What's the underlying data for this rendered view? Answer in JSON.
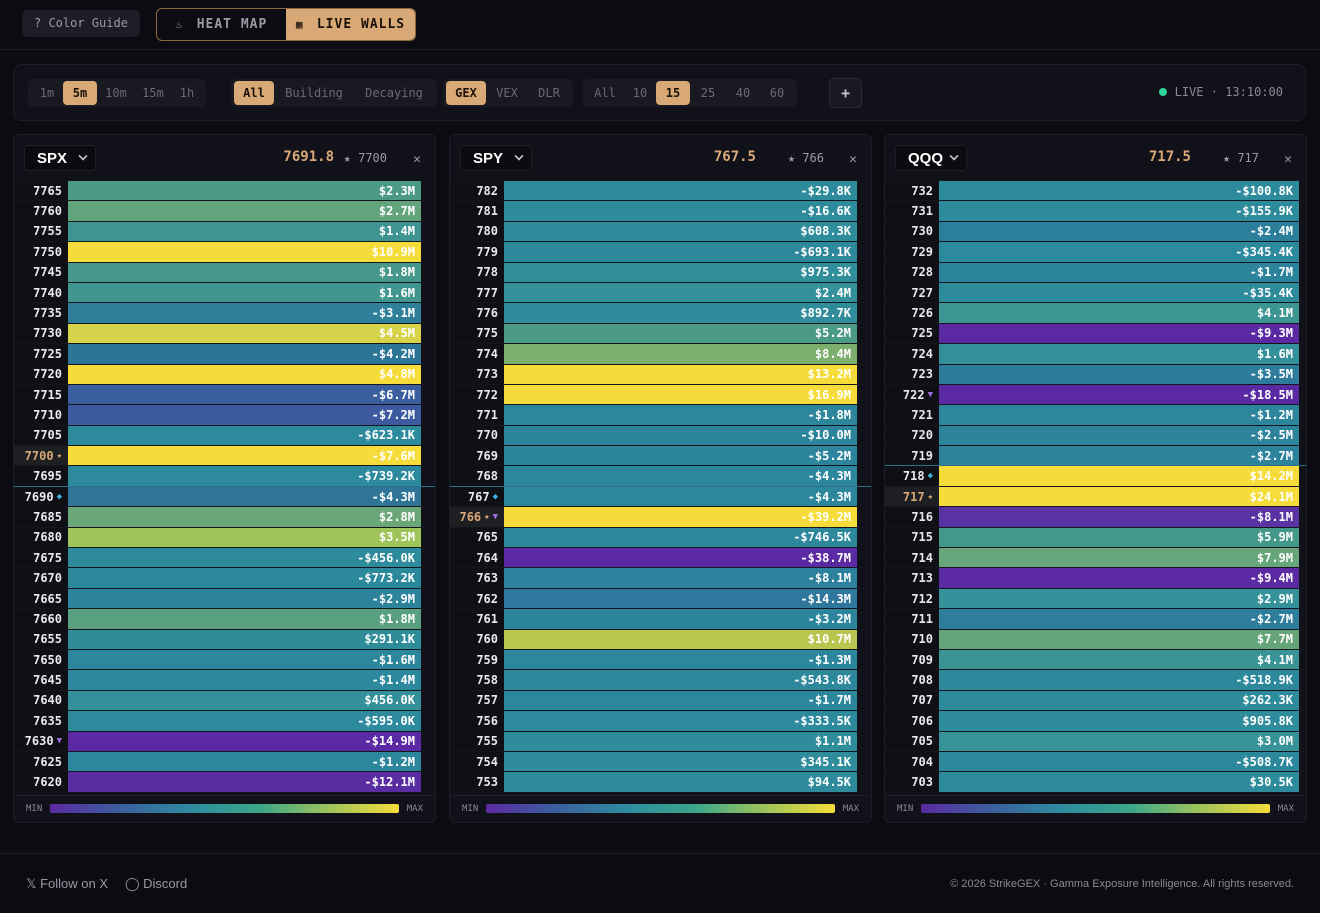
{
  "header": {
    "color_guide": "? Color Guide",
    "modes": [
      {
        "label": "HEAT MAP",
        "active": false
      },
      {
        "label": "LIVE WALLS",
        "active": true
      }
    ]
  },
  "controls": {
    "timeframes": [
      {
        "label": "1m",
        "active": false
      },
      {
        "label": "5m",
        "active": true
      },
      {
        "label": "10m",
        "active": false
      },
      {
        "label": "15m",
        "active": false
      },
      {
        "label": "1h",
        "active": false
      }
    ],
    "filters": [
      {
        "label": "All",
        "active": true
      },
      {
        "label": "Building",
        "active": false
      },
      {
        "label": "Decaying",
        "active": false
      }
    ],
    "metrics": [
      {
        "label": "GEX",
        "active": true
      },
      {
        "label": "VEX",
        "active": false
      },
      {
        "label": "DLR",
        "active": false
      }
    ],
    "strike_counts": [
      {
        "label": "All",
        "active": false
      },
      {
        "label": "10",
        "active": false
      },
      {
        "label": "15",
        "active": true
      },
      {
        "label": "25",
        "active": false
      },
      {
        "label": "40",
        "active": false
      },
      {
        "label": "60",
        "active": false
      }
    ],
    "add": "+",
    "live": "LIVE · 13:10:00"
  },
  "panels": [
    {
      "symbol": "SPX",
      "price": "7691.8",
      "star_strike": "★ 7700",
      "rows": [
        [
          "7765",
          "$2.3M",
          "#4b9a86",
          ""
        ],
        [
          "7760",
          "$2.7M",
          "#62a47c",
          ""
        ],
        [
          "7755",
          "$1.4M",
          "#3d9491",
          ""
        ],
        [
          "7750",
          "$10.9M",
          "#f5dc3a",
          ""
        ],
        [
          "7745",
          "$1.8M",
          "#45988b",
          ""
        ],
        [
          "7740",
          "$1.6M",
          "#419690",
          ""
        ],
        [
          "7735",
          "-$3.1M",
          "#2f7f9a",
          ""
        ],
        [
          "7730",
          "$4.5M",
          "#d6d24a",
          ""
        ],
        [
          "7725",
          "-$4.2M",
          "#2d7597",
          ""
        ],
        [
          "7720",
          "$4.8M",
          "#f5dc3a",
          ""
        ],
        [
          "7715",
          "-$6.7M",
          "#3b5f9e",
          ""
        ],
        [
          "7710",
          "-$7.2M",
          "#3d5aa0",
          ""
        ],
        [
          "7705",
          "-$623.1K",
          "#2c8a9c",
          ""
        ],
        [
          "7700",
          "-$7.6M",
          "#f5dc3a",
          "atm"
        ],
        [
          "7695",
          "-$739.2K",
          "#2c8a9c",
          ""
        ],
        [
          "7690",
          "-$4.3M",
          "#2e7597",
          "cur"
        ],
        [
          "7685",
          "$2.8M",
          "#6aa678",
          ""
        ],
        [
          "7680",
          "$3.5M",
          "#9fc45a",
          ""
        ],
        [
          "7675",
          "-$456.0K",
          "#2d8b9c",
          ""
        ],
        [
          "7670",
          "-$773.2K",
          "#2c899c",
          ""
        ],
        [
          "7665",
          "-$2.9M",
          "#2d839b",
          ""
        ],
        [
          "7660",
          "$1.8M",
          "#58a07f",
          ""
        ],
        [
          "7655",
          "$291.1K",
          "#2f8d9a",
          ""
        ],
        [
          "7650",
          "-$1.6M",
          "#2c879c",
          ""
        ],
        [
          "7645",
          "-$1.4M",
          "#2c889c",
          ""
        ],
        [
          "7640",
          "$456.0K",
          "#33909a",
          ""
        ],
        [
          "7635",
          "-$595.0K",
          "#2d8a9c",
          ""
        ],
        [
          "7630",
          "-$14.9M",
          "#5b2aa3",
          "min"
        ],
        [
          "7625",
          "-$1.2M",
          "#2d879c",
          ""
        ],
        [
          "7620",
          "-$12.1M",
          "#5a2ca2",
          ""
        ]
      ]
    },
    {
      "symbol": "SPY",
      "price": "767.5",
      "star_strike": "★ 766",
      "rows": [
        [
          "782",
          "-$29.8K",
          "#2e8b9c",
          ""
        ],
        [
          "781",
          "-$16.6K",
          "#2e8b9c",
          ""
        ],
        [
          "780",
          "$608.3K",
          "#2f8c9b",
          ""
        ],
        [
          "779",
          "-$693.1K",
          "#2d889c",
          ""
        ],
        [
          "778",
          "$975.3K",
          "#308d9a",
          ""
        ],
        [
          "777",
          "$2.4M",
          "#34909a",
          ""
        ],
        [
          "776",
          "$892.7K",
          "#308c9a",
          ""
        ],
        [
          "775",
          "$5.2M",
          "#4b9a86",
          ""
        ],
        [
          "774",
          "$8.4M",
          "#7cae6e",
          ""
        ],
        [
          "773",
          "$13.2M",
          "#f5dc3a",
          ""
        ],
        [
          "772",
          "$16.9M",
          "#f5dc3a",
          ""
        ],
        [
          "771",
          "-$1.8M",
          "#2d869c",
          ""
        ],
        [
          "770",
          "-$10.0M",
          "#2c849c",
          ""
        ],
        [
          "769",
          "-$5.2M",
          "#2c859c",
          ""
        ],
        [
          "768",
          "-$4.3M",
          "#2c869c",
          ""
        ],
        [
          "767",
          "-$4.3M",
          "#2c869c",
          "cur"
        ],
        [
          "766",
          "-$39.2M",
          "#f5dc3a",
          "atm"
        ],
        [
          "765",
          "-$746.5K",
          "#2d889c",
          ""
        ],
        [
          "764",
          "-$38.7M",
          "#5b2aa3",
          ""
        ],
        [
          "763",
          "-$8.1M",
          "#2c829c",
          ""
        ],
        [
          "762",
          "-$14.3M",
          "#2f779c",
          ""
        ],
        [
          "761",
          "-$3.2M",
          "#2c859c",
          ""
        ],
        [
          "760",
          "$10.7M",
          "#b8c54f",
          ""
        ],
        [
          "759",
          "-$1.3M",
          "#2d879c",
          ""
        ],
        [
          "758",
          "-$543.8K",
          "#2d889c",
          ""
        ],
        [
          "757",
          "-$1.7M",
          "#2d879c",
          ""
        ],
        [
          "756",
          "-$333.5K",
          "#2d899c",
          ""
        ],
        [
          "755",
          "$1.1M",
          "#2f8d9b",
          ""
        ],
        [
          "754",
          "$345.1K",
          "#2f8c9b",
          ""
        ],
        [
          "753",
          "$94.5K",
          "#2e8b9c",
          ""
        ]
      ]
    },
    {
      "symbol": "QQQ",
      "price": "717.5",
      "star_strike": "★ 717",
      "rows": [
        [
          "732",
          "-$100.8K",
          "#2e8b9c",
          ""
        ],
        [
          "731",
          "-$155.9K",
          "#2e8b9c",
          ""
        ],
        [
          "730",
          "-$2.4M",
          "#2c7f9b",
          ""
        ],
        [
          "729",
          "-$345.4K",
          "#2d899c",
          ""
        ],
        [
          "728",
          "-$1.7M",
          "#2c839c",
          ""
        ],
        [
          "727",
          "-$35.4K",
          "#2e8b9c",
          ""
        ],
        [
          "726",
          "$4.1M",
          "#3c9592",
          ""
        ],
        [
          "725",
          "-$9.3M",
          "#5b2aa3",
          ""
        ],
        [
          "724",
          "$1.6M",
          "#33909a",
          ""
        ],
        [
          "723",
          "-$3.5M",
          "#2e7b9b",
          ""
        ],
        [
          "722",
          "-$18.5M",
          "#5b2aa3",
          "min"
        ],
        [
          "721",
          "-$1.2M",
          "#2d869c",
          ""
        ],
        [
          "720",
          "-$2.5M",
          "#2d839c",
          ""
        ],
        [
          "719",
          "-$2.7M",
          "#2d829c",
          ""
        ],
        [
          "718",
          "$14.2M",
          "#f5dc3a",
          "cur"
        ],
        [
          "717",
          "$24.1M",
          "#f5dc3a",
          "atm"
        ],
        [
          "716",
          "-$8.1M",
          "#5a33a3",
          ""
        ],
        [
          "715",
          "$5.9M",
          "#449889",
          ""
        ],
        [
          "714",
          "$7.9M",
          "#67a67a",
          ""
        ],
        [
          "713",
          "-$9.4M",
          "#5b2aa3",
          ""
        ],
        [
          "712",
          "$2.9M",
          "#36929a",
          ""
        ],
        [
          "711",
          "-$2.7M",
          "#2e7d9b",
          ""
        ],
        [
          "710",
          "$7.7M",
          "#66a57a",
          ""
        ],
        [
          "709",
          "$4.1M",
          "#3a9496",
          ""
        ],
        [
          "708",
          "-$518.9K",
          "#2d889c",
          ""
        ],
        [
          "707",
          "$262.3K",
          "#2e8b9c",
          ""
        ],
        [
          "706",
          "$905.8K",
          "#2f8d9b",
          ""
        ],
        [
          "705",
          "$3.0M",
          "#379397",
          ""
        ],
        [
          "704",
          "-$508.7K",
          "#2d889c",
          ""
        ],
        [
          "703",
          "$30.5K",
          "#2e8b9c",
          ""
        ]
      ]
    }
  ],
  "legend": {
    "min": "MIN",
    "max": "MAX"
  },
  "footer": {
    "x": "𝕏 Follow on X",
    "discord": "◯ Discord",
    "copyright": "© 2026 StrikeGEX · Gamma Exposure Intelligence. All rights reserved."
  }
}
